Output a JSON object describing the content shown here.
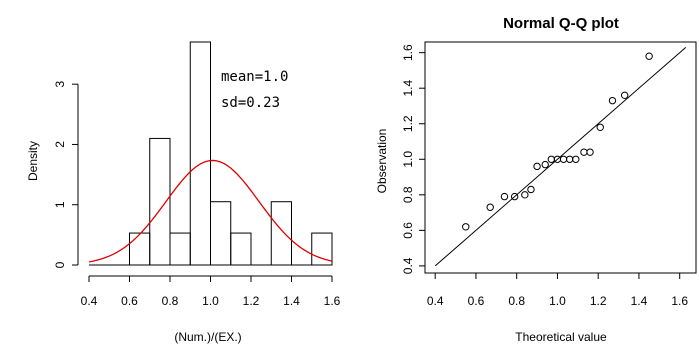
{
  "chart_data": [
    {
      "type": "bar",
      "subtype": "histogram-with-density",
      "title": "",
      "xlabel": "(Num.)/(EX.)",
      "ylabel": "Density",
      "xlim": [
        0.4,
        1.6
      ],
      "ylim": [
        0,
        3.7
      ],
      "xticks": [
        "0.4",
        "0.6",
        "0.8",
        "1.0",
        "1.2",
        "1.4",
        "1.6"
      ],
      "yticks": [
        "0",
        "1",
        "2",
        "3"
      ],
      "bins": [
        {
          "from": 0.6,
          "to": 0.7,
          "density": 0.53
        },
        {
          "from": 0.7,
          "to": 0.8,
          "density": 2.1
        },
        {
          "from": 0.8,
          "to": 0.9,
          "density": 0.53
        },
        {
          "from": 0.9,
          "to": 1.0,
          "density": 3.7
        },
        {
          "from": 1.0,
          "to": 1.1,
          "density": 1.05
        },
        {
          "from": 1.1,
          "to": 1.2,
          "density": 0.53
        },
        {
          "from": 1.2,
          "to": 1.3,
          "density": 0.0
        },
        {
          "from": 1.3,
          "to": 1.4,
          "density": 1.05
        },
        {
          "from": 1.4,
          "to": 1.5,
          "density": 0.0
        },
        {
          "from": 1.5,
          "to": 1.6,
          "density": 0.53
        }
      ],
      "density_curve": {
        "mean": 1.01,
        "sd": 0.23,
        "from": 0.4,
        "to": 1.6,
        "color": "#e00000"
      },
      "annotations": [
        "mean=1.0",
        "sd=0.23"
      ]
    },
    {
      "type": "scatter",
      "title": "Normal Q-Q plot",
      "xlabel": "Theoretical value",
      "ylabel": "Observation",
      "xlim": [
        0.35,
        1.68
      ],
      "ylim": [
        0.36,
        1.66
      ],
      "xticks": [
        "0.4",
        "0.6",
        "0.8",
        "1.0",
        "1.2",
        "1.4",
        "1.6"
      ],
      "yticks": [
        "0.4",
        "0.6",
        "0.8",
        "1.0",
        "1.2",
        "1.4",
        "1.6"
      ],
      "points": [
        {
          "x": 0.55,
          "y": 0.62
        },
        {
          "x": 0.67,
          "y": 0.73
        },
        {
          "x": 0.74,
          "y": 0.79
        },
        {
          "x": 0.79,
          "y": 0.79
        },
        {
          "x": 0.84,
          "y": 0.8
        },
        {
          "x": 0.87,
          "y": 0.83
        },
        {
          "x": 0.9,
          "y": 0.96
        },
        {
          "x": 0.94,
          "y": 0.97
        },
        {
          "x": 0.97,
          "y": 1.0
        },
        {
          "x": 1.0,
          "y": 1.0
        },
        {
          "x": 1.03,
          "y": 1.0
        },
        {
          "x": 1.06,
          "y": 1.0
        },
        {
          "x": 1.09,
          "y": 1.0
        },
        {
          "x": 1.13,
          "y": 1.04
        },
        {
          "x": 1.16,
          "y": 1.04
        },
        {
          "x": 1.21,
          "y": 1.18
        },
        {
          "x": 1.27,
          "y": 1.33
        },
        {
          "x": 1.33,
          "y": 1.36
        },
        {
          "x": 1.45,
          "y": 1.58
        }
      ],
      "reference_line": {
        "from": [
          0.4,
          0.4
        ],
        "to": [
          1.63,
          1.63
        ]
      }
    }
  ]
}
